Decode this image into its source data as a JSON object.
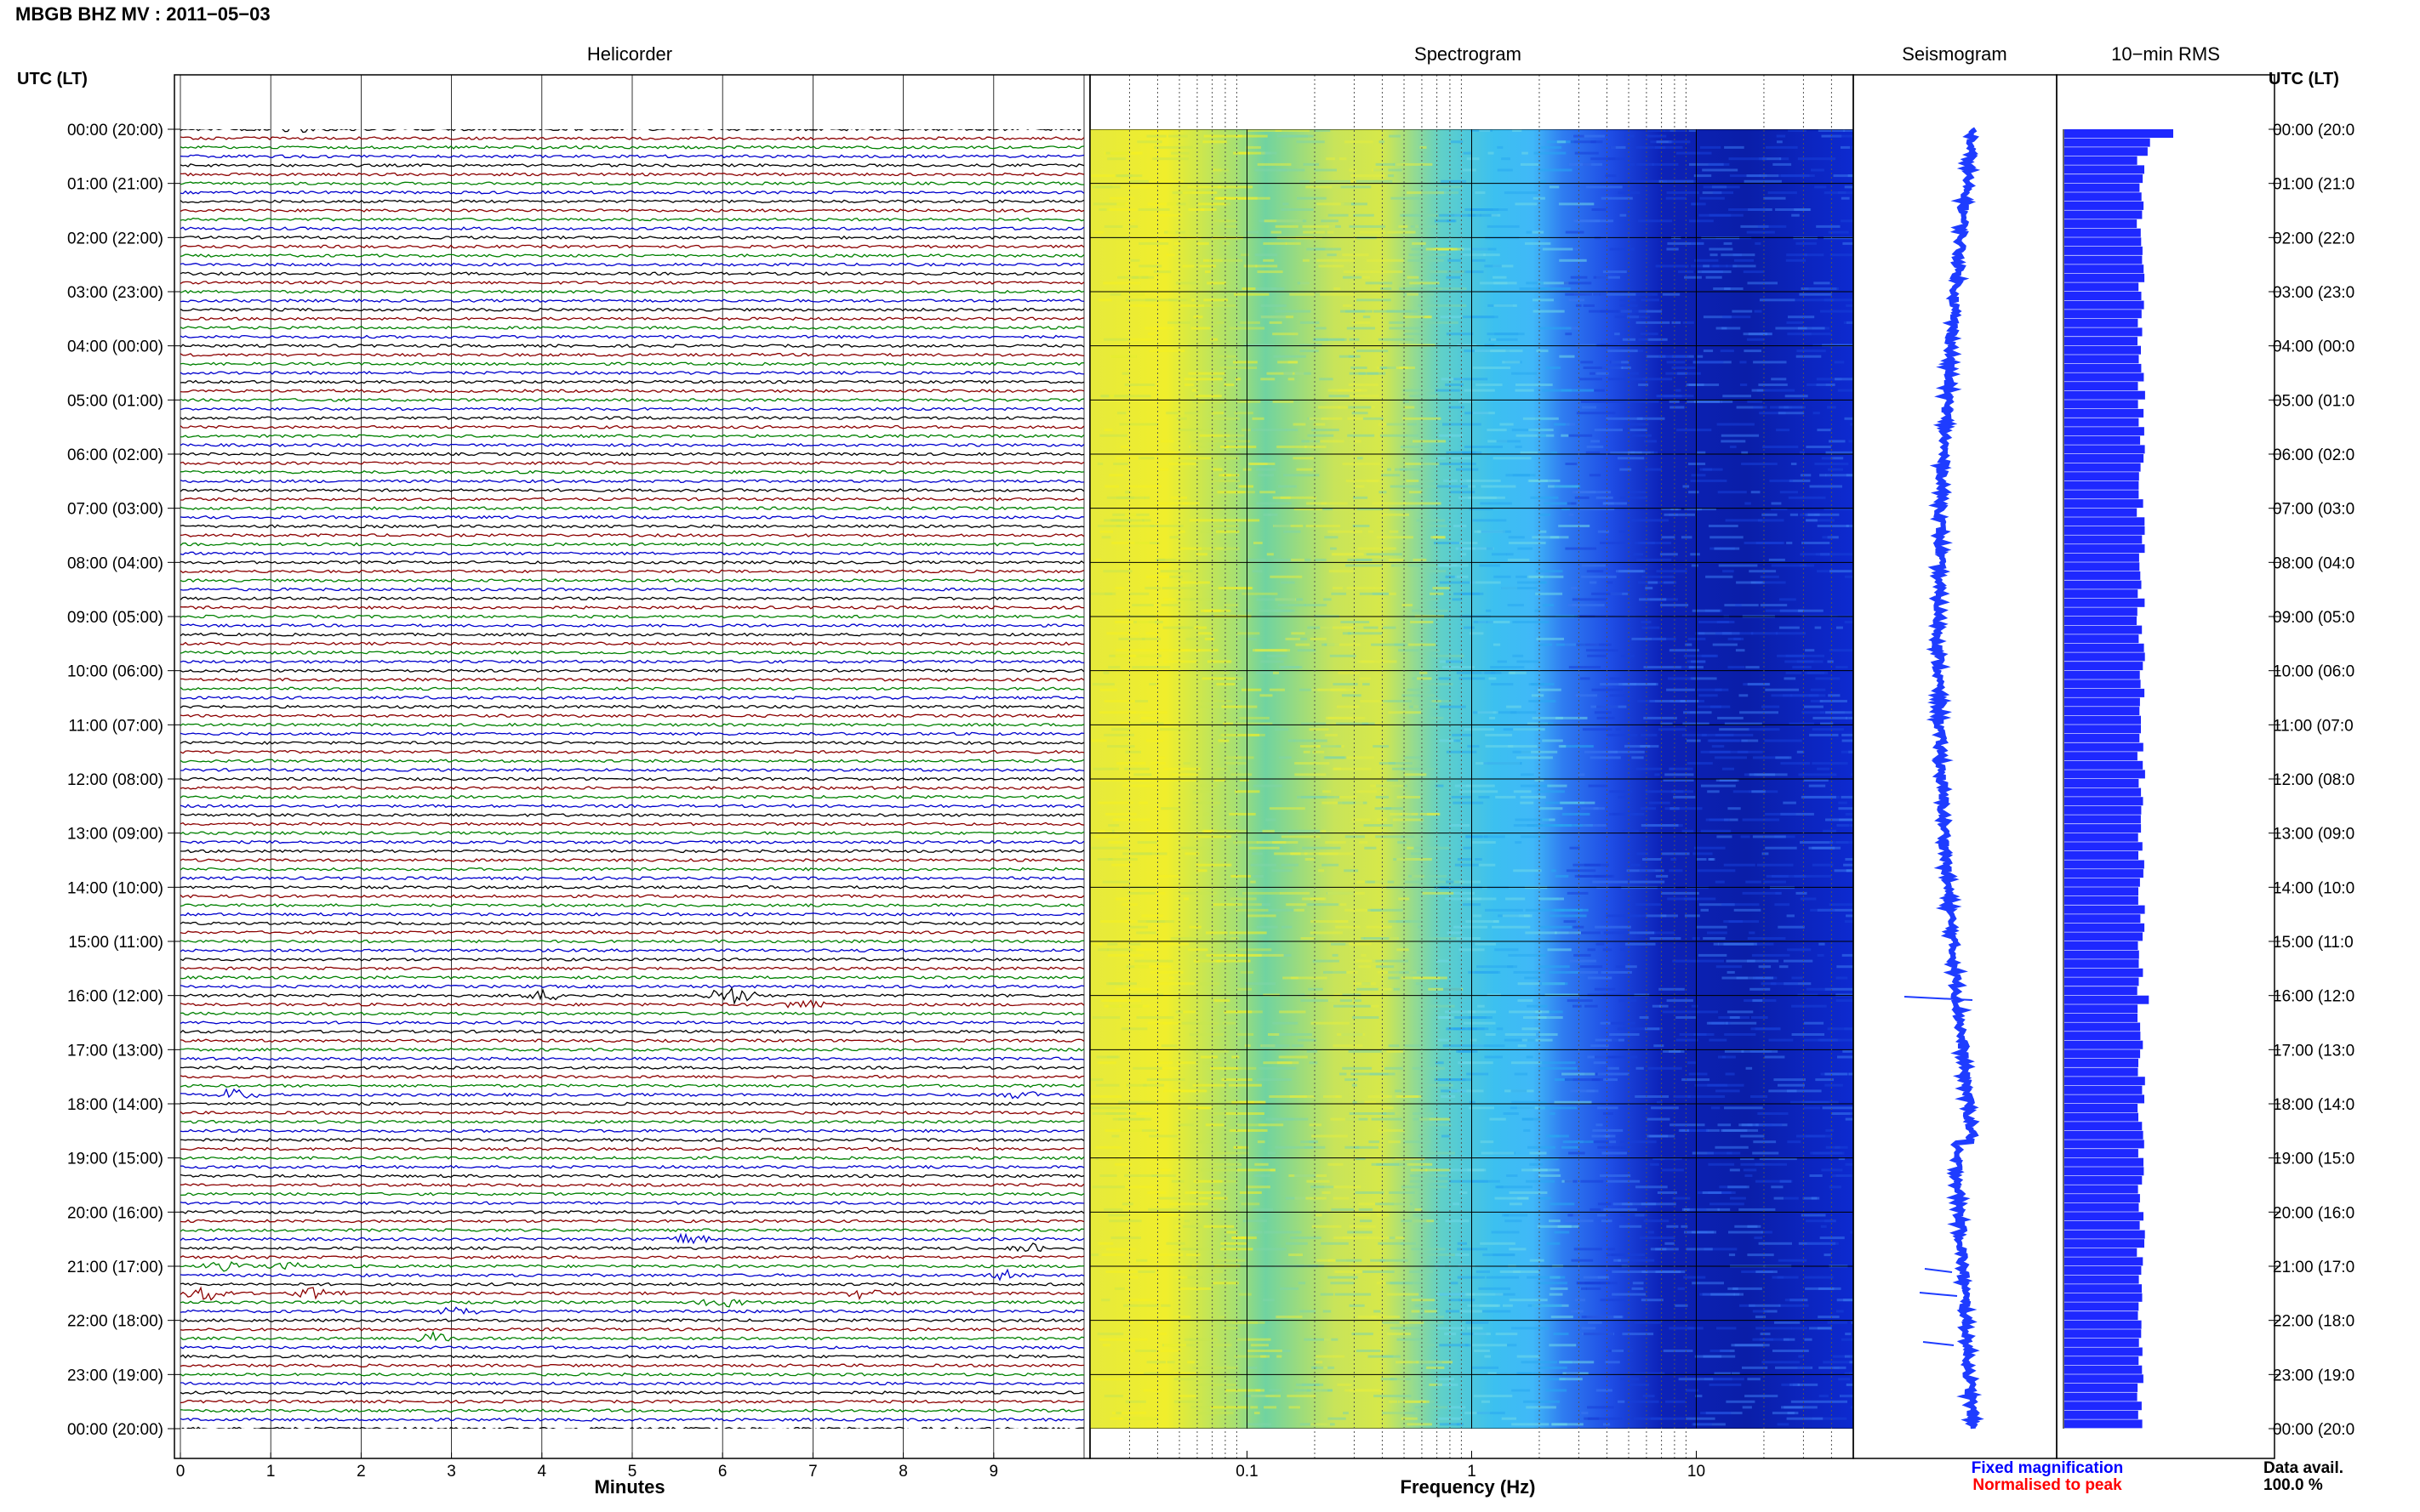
{
  "header": {
    "station_title": "MBGB BHZ MV : 2011−05−03",
    "left_axis_header": "UTC (LT)",
    "right_axis_header": "UTC (LT)"
  },
  "panels": {
    "helicorder_title": "Helicorder",
    "spectrogram_title": "Spectrogram",
    "seismogram_title": "Seismogram",
    "rms_title": "10−min RMS"
  },
  "footer": {
    "minutes_label": "Minutes",
    "frequency_label": "Frequency (Hz)",
    "fixed_magnification": "Fixed magnification",
    "normalised_to_peak": "Normalised to peak",
    "data_avail_label": "Data avail.",
    "data_avail_value": "100.0 %"
  },
  "colors": {
    "trace_cycle": [
      "#000000",
      "#8b0000",
      "#008000",
      "#0000cd"
    ],
    "seismogram": "#1e3cff",
    "rms_bar": "#1e28ff",
    "fixed_text": "#0000ff",
    "normalised_text": "#ff0000"
  },
  "chart_data": {
    "type": "helicorder",
    "time_labels": [
      "00:00 (20:00)",
      "01:00 (21:00)",
      "02:00 (22:00)",
      "03:00 (23:00)",
      "04:00 (00:00)",
      "05:00 (01:00)",
      "06:00 (02:00)",
      "07:00 (03:00)",
      "08:00 (04:00)",
      "09:00 (05:00)",
      "10:00 (06:00)",
      "11:00 (07:00)",
      "12:00 (08:00)",
      "13:00 (09:00)",
      "14:00 (10:00)",
      "15:00 (11:00)",
      "16:00 (12:00)",
      "17:00 (13:00)",
      "18:00 (14:00)",
      "19:00 (15:00)",
      "20:00 (16:00)",
      "21:00 (17:00)",
      "22:00 (18:00)",
      "23:00 (19:00)",
      "00:00 (20:00)"
    ],
    "right_time_labels": [
      "00:00 (20:0",
      "01:00 (21:0",
      "02:00 (22:0",
      "03:00 (23:0",
      "04:00 (00:0",
      "05:00 (01:0",
      "06:00 (02:0",
      "07:00 (03:0",
      "08:00 (04:0",
      "09:00 (05:0",
      "10:00 (06:0",
      "11:00 (07:0",
      "12:00 (08:0",
      "13:00 (09:0",
      "14:00 (10:0",
      "15:00 (11:0",
      "16:00 (12:0",
      "17:00 (13:0",
      "18:00 (14:0",
      "19:00 (15:0",
      "20:00 (16:0",
      "21:00 (17:0",
      "22:00 (18:0",
      "23:00 (19:0",
      "00:00 (20:0"
    ],
    "traces_per_hour": 6,
    "minutes_ticks": [
      0,
      1,
      2,
      3,
      4,
      5,
      6,
      7,
      8,
      9
    ],
    "minutes_range": [
      0,
      10
    ],
    "freq_range": [
      0.02,
      50
    ],
    "freq_scale": "log",
    "freq_tick_labels": [
      {
        "value": 0.1,
        "label": "0.1"
      },
      {
        "value": 1,
        "label": "1"
      },
      {
        "value": 10,
        "label": "10"
      }
    ],
    "events": [
      {
        "trace": 0,
        "minute": 1.2,
        "amp": 0.9
      },
      {
        "trace": 96,
        "minute": 4.0,
        "amp": 0.8
      },
      {
        "trace": 96,
        "minute": 6.1,
        "amp": 1.6
      },
      {
        "trace": 97,
        "minute": 6.9,
        "amp": 0.9
      },
      {
        "trace": 107,
        "minute": 0.6,
        "amp": 0.9
      },
      {
        "trace": 107,
        "minute": 9.3,
        "amp": 0.6
      },
      {
        "trace": 123,
        "minute": 5.6,
        "amp": 0.9
      },
      {
        "trace": 124,
        "minute": 9.4,
        "amp": 0.8
      },
      {
        "trace": 126,
        "minute": 0.5,
        "amp": 0.9
      },
      {
        "trace": 126,
        "minute": 1.2,
        "amp": 0.6
      },
      {
        "trace": 127,
        "minute": 9.1,
        "amp": 0.9
      },
      {
        "trace": 129,
        "minute": 0.3,
        "amp": 1.1
      },
      {
        "trace": 129,
        "minute": 1.5,
        "amp": 1.0
      },
      {
        "trace": 129,
        "minute": 7.6,
        "amp": 1.0
      },
      {
        "trace": 130,
        "minute": 6.0,
        "amp": 0.7
      },
      {
        "trace": 131,
        "minute": 3.1,
        "amp": 0.9
      },
      {
        "trace": 134,
        "minute": 2.8,
        "amp": 1.0
      }
    ]
  }
}
